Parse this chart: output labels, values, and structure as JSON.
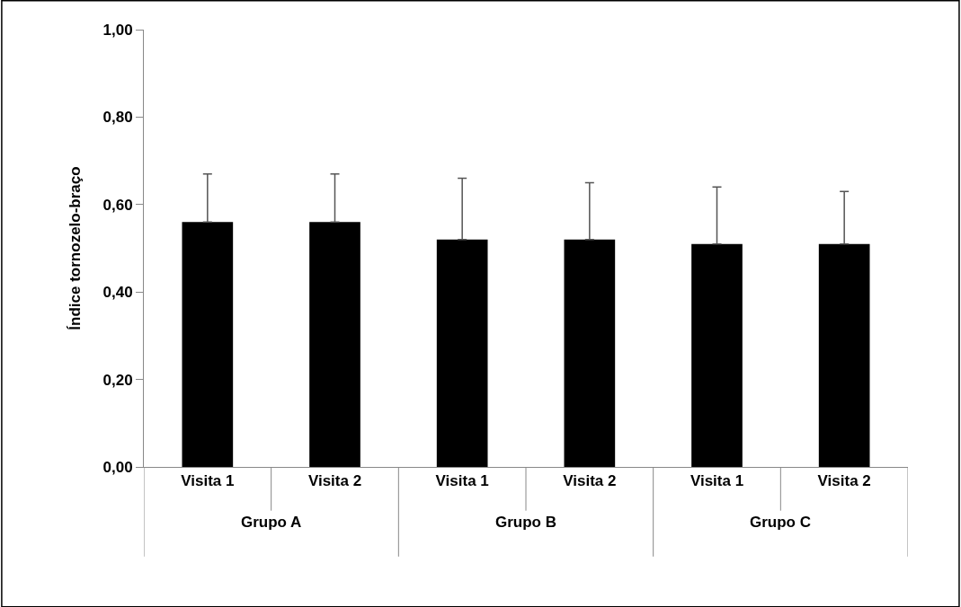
{
  "chart_data": {
    "type": "bar",
    "ylabel": "Índice tornozelo-braço",
    "categories": [
      "Visita 1",
      "Visita 2",
      "Visita 1",
      "Visita 2",
      "Visita 1",
      "Visita 2"
    ],
    "annotations": [
      "Grupo A",
      "Grupo B",
      "Grupo C"
    ],
    "values": [
      0.56,
      0.56,
      0.52,
      0.52,
      0.51,
      0.51
    ],
    "errors": [
      [
        0.56,
        0.67
      ],
      [
        0.56,
        0.67
      ],
      [
        0.52,
        0.66
      ],
      [
        0.52,
        0.65
      ],
      [
        0.51,
        0.64
      ],
      [
        0.51,
        0.63
      ]
    ],
    "color": "#000000",
    "ylim": [
      0,
      1
    ],
    "yticks": [
      {
        "value": 0,
        "label": "0,00"
      },
      {
        "value": 0.2,
        "label": "0,20"
      },
      {
        "value": 0.4,
        "label": "0,40"
      },
      {
        "value": 0.6,
        "label": "0,60"
      },
      {
        "value": 0.8,
        "label": "0,80"
      },
      {
        "value": 1,
        "label": "1,00"
      }
    ]
  }
}
